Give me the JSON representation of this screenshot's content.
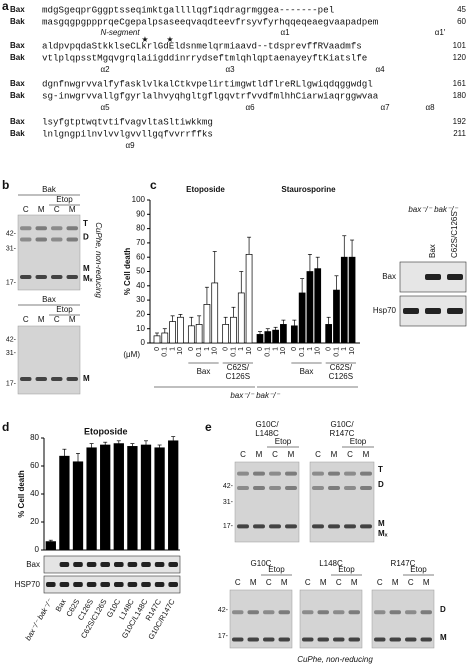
{
  "panel_labels": [
    "a",
    "b",
    "c",
    "d",
    "e"
  ],
  "panel_a": {
    "rows": [
      {
        "name": "Bax",
        "seq": "mdgSgeqprGggptsseqimktgallllqgfiqdragrmggea-------pel",
        "end": "45"
      },
      {
        "name": "Bak",
        "seq": "masgqgpgppprqeCgepalpsaseeqvaqdteevfrsyvfyrhqqeqeaegvaapadpem",
        "end": "60"
      },
      {
        "name": "Bax",
        "seq": "aldpvpqdaStkklseCLkrlGdEldsnmelqrmiaavd--tdsprevffRVaadmfs",
        "end": "101"
      },
      {
        "name": "Bak",
        "seq": "vtlplqpsstMgqvgrqlaiigddinrrydseftmlqhlqptaenayeyftKiatslfe",
        "end": "120"
      },
      {
        "name": "Bax",
        "seq": "dgnfnwgrvvalfyfasklvlkalCtkvpelirtimgwtldflreRLlgwiqdqggwdgl",
        "end": "161"
      },
      {
        "name": "Bak",
        "seq": "sg-inwgrvvallgfgyrlalhvyqhgltgflgqvtrfvvdfmlhhCiarwiaqrggwvaa",
        "end": "180"
      },
      {
        "name": "Bax",
        "seq": "lsyfgtptwqtvtifvagvltaSltiwkkmg",
        "end": "192"
      },
      {
        "name": "Bak",
        "seq": "lnlgngpilnvlvvlgvvllgqfvvrrffks",
        "end": "211"
      }
    ],
    "annotations": [
      [
        "N-segment",
        "α1",
        "α1′"
      ],
      [
        "α2",
        "α3",
        "α4"
      ],
      [
        "α5",
        "α6",
        "α7",
        "α8"
      ],
      [
        "α9"
      ]
    ]
  },
  "panel_b": {
    "gels": [
      {
        "protein": "Bak",
        "treatment": "Etop",
        "lanes": [
          "C",
          "M",
          "C",
          "M"
        ],
        "markers": [
          "42-",
          "31-",
          "17-"
        ],
        "bands": [
          "T",
          "D",
          "M",
          "Mₓ"
        ]
      },
      {
        "protein": "Bax",
        "treatment": "Etop",
        "lanes": [
          "C",
          "M",
          "C",
          "M"
        ],
        "markers": [
          "42-",
          "31-",
          "17-"
        ],
        "bands": [
          "M"
        ]
      }
    ],
    "condition": "CuPhe, non-reducing"
  },
  "chart_data": [
    {
      "type": "bar",
      "title": "% Cell death",
      "ylabel": "% Cell death",
      "ylim": [
        0,
        100
      ],
      "yticks": [
        0,
        10,
        20,
        30,
        40,
        50,
        60,
        70,
        80,
        90,
        100
      ],
      "x_unit": "(μM)",
      "categories": [
        "0",
        "0.1",
        "1",
        "10",
        "0",
        "0.1",
        "1",
        "10",
        "0",
        "0.1",
        "1",
        "10"
      ],
      "groups": [
        null,
        "Bax",
        "C62S/C126S"
      ],
      "footer": "bax⁻/⁻ bak⁻/⁻",
      "series": [
        {
          "name": "Etoposide",
          "color": "#ffffff",
          "values": [
            5,
            7,
            15,
            18,
            12,
            13,
            27,
            42,
            13,
            18,
            35,
            62
          ],
          "errors": [
            2,
            3,
            4,
            2,
            6,
            6,
            12,
            22,
            5,
            7,
            15,
            12
          ]
        },
        {
          "name": "Staurosporine",
          "color": "#000000",
          "values": [
            6,
            8,
            9,
            13,
            12,
            35,
            50,
            52,
            13,
            37,
            60,
            60
          ],
          "errors": [
            2,
            2,
            2,
            3,
            4,
            10,
            12,
            8,
            5,
            10,
            15,
            12
          ]
        }
      ]
    },
    {
      "type": "bar",
      "title": "Etoposide",
      "ylabel": "% Cell death",
      "ylim": [
        0,
        80
      ],
      "yticks": [
        0,
        20,
        40,
        60,
        80
      ],
      "color": "#000000",
      "categories": [
        "bax⁻/⁻ bak⁻/⁻",
        "Bax",
        "C62S",
        "C126S",
        "C62S/C126S",
        "G10C",
        "L148C",
        "G10C/L148C",
        "R147C",
        "G10C/R147C"
      ],
      "values": [
        6,
        67,
        63,
        73,
        75,
        76,
        74,
        75,
        73,
        78
      ],
      "errors": [
        1,
        5,
        6,
        3,
        2,
        2,
        2,
        3,
        2,
        3
      ],
      "blots": [
        "Bax",
        "HSP70"
      ]
    }
  ],
  "panel_c_blot": {
    "genotype": "bax⁻/⁻ bak⁻/⁻",
    "lanes": [
      null,
      "Bax",
      "C62S/C126S"
    ],
    "rows": [
      "Bax",
      "Hsp70"
    ]
  },
  "panel_e": {
    "top_bands": [
      "T",
      "D",
      "M",
      "Mₓ"
    ],
    "bottom_bands": [
      "D",
      "M"
    ],
    "condition": "CuPhe, non-reducing",
    "gels": [
      {
        "title": "G10C/L148C",
        "treatment": "Etop",
        "lanes": [
          "C",
          "M",
          "C",
          "M"
        ],
        "markers": [
          "42-",
          "31-",
          "17-"
        ]
      },
      {
        "title": "G10C/R147C",
        "treatment": "Etop",
        "lanes": [
          "C",
          "M",
          "C",
          "M"
        ]
      },
      {
        "title": "G10C",
        "treatment": "Etop",
        "lanes": [
          "C",
          "M",
          "C",
          "M"
        ],
        "markers": [
          "42-",
          "17-"
        ]
      },
      {
        "title": "L148C",
        "treatment": "Etop",
        "lanes": [
          "C",
          "M",
          "C",
          "M"
        ]
      },
      {
        "title": "R147C",
        "treatment": "Etop",
        "lanes": [
          "C",
          "M",
          "C",
          "M"
        ]
      }
    ]
  }
}
